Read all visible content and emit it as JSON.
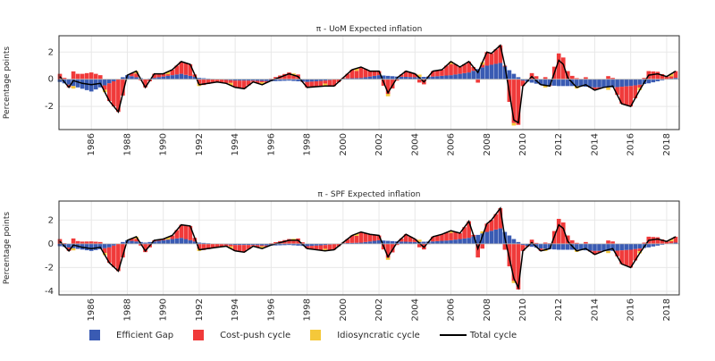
{
  "colors": {
    "efficient": "#3a5bb3",
    "costpush": "#f03a3a",
    "idio": "#f5c83a",
    "total": "#000000",
    "grid": "#e8e8e8",
    "axis": "#2a2a2a"
  },
  "legend": {
    "efficient_label": "Efficient Gap",
    "costpush_label": "Cost-push cycle",
    "idio_label": "Idiosyncratic cycle",
    "total_label": "Total cycle"
  },
  "chart_data": [
    {
      "type": "bar",
      "title": "π - UoM Expected inflation",
      "ylabel": "Percentage points",
      "xlim": [
        1984.2,
        2018.7
      ],
      "ylim": [
        -3.7,
        3.2
      ],
      "y_ticks": [
        -2,
        0,
        2
      ],
      "x_ticks": [
        1986,
        1988,
        1990,
        1992,
        1994,
        1996,
        1998,
        2000,
        2002,
        2004,
        2006,
        2008,
        2010,
        2012,
        2014,
        2016,
        2018
      ],
      "grid": true,
      "stacked": true,
      "efficient_gap_points": [
        [
          1984.25,
          -0.2
        ],
        [
          1986,
          -0.9
        ],
        [
          1987,
          -0.3
        ],
        [
          1988,
          0.3
        ],
        [
          1989,
          0.0
        ],
        [
          1990,
          0.2
        ],
        [
          1991,
          0.4
        ],
        [
          1992,
          0.1
        ],
        [
          1993,
          0.0
        ],
        [
          1994,
          -0.1
        ],
        [
          1995,
          -0.1
        ],
        [
          1996,
          -0.15
        ],
        [
          1997,
          -0.1
        ],
        [
          1998,
          -0.2
        ],
        [
          1999,
          -0.1
        ],
        [
          2000,
          0.05
        ],
        [
          2001,
          0.1
        ],
        [
          2002,
          0.3
        ],
        [
          2003,
          0.2
        ],
        [
          2004,
          0.15
        ],
        [
          2005,
          0.2
        ],
        [
          2006,
          0.3
        ],
        [
          2007,
          0.5
        ],
        [
          2008,
          1.0
        ],
        [
          2008.75,
          1.2
        ],
        [
          2009.5,
          0.4
        ],
        [
          2010,
          -0.1
        ],
        [
          2011,
          -0.4
        ],
        [
          2012,
          -0.5
        ],
        [
          2013,
          -0.5
        ],
        [
          2014,
          -0.6
        ],
        [
          2015,
          -0.6
        ],
        [
          2016,
          -0.5
        ],
        [
          2017,
          -0.3
        ],
        [
          2018,
          0.0
        ],
        [
          2018.5,
          0.1
        ]
      ],
      "total_cycle_points": [
        [
          1984.25,
          0.2
        ],
        [
          1984.75,
          -0.6
        ],
        [
          1985,
          -0.1
        ],
        [
          1985.5,
          -0.3
        ],
        [
          1986,
          -0.4
        ],
        [
          1986.5,
          -0.3
        ],
        [
          1987,
          -1.6
        ],
        [
          1987.5,
          -2.4
        ],
        [
          1988,
          0.3
        ],
        [
          1988.5,
          0.6
        ],
        [
          1989,
          -0.6
        ],
        [
          1989.5,
          0.4
        ],
        [
          1990,
          0.4
        ],
        [
          1990.5,
          0.7
        ],
        [
          1991,
          1.3
        ],
        [
          1991.5,
          1.1
        ],
        [
          1992,
          -0.4
        ],
        [
          1993,
          -0.2
        ],
        [
          1993.5,
          -0.3
        ],
        [
          1994,
          -0.6
        ],
        [
          1994.5,
          -0.7
        ],
        [
          1995,
          -0.2
        ],
        [
          1995.5,
          -0.4
        ],
        [
          1996,
          -0.1
        ],
        [
          1997,
          0.4
        ],
        [
          1997.5,
          0.2
        ],
        [
          1998,
          -0.6
        ],
        [
          1999,
          -0.5
        ],
        [
          1999.5,
          -0.5
        ],
        [
          2000,
          0.1
        ],
        [
          2000.5,
          0.7
        ],
        [
          2001,
          0.9
        ],
        [
          2001.5,
          0.6
        ],
        [
          2002,
          0.6
        ],
        [
          2002.5,
          -1.0
        ],
        [
          2003,
          0.1
        ],
        [
          2003.5,
          0.6
        ],
        [
          2004,
          0.4
        ],
        [
          2004.5,
          -0.2
        ],
        [
          2005,
          0.6
        ],
        [
          2005.5,
          0.7
        ],
        [
          2006,
          1.3
        ],
        [
          2006.5,
          0.9
        ],
        [
          2007,
          1.3
        ],
        [
          2007.5,
          0.5
        ],
        [
          2008,
          2.0
        ],
        [
          2008.25,
          1.9
        ],
        [
          2008.75,
          2.5
        ],
        [
          2009,
          1.0
        ],
        [
          2009.5,
          -3.0
        ],
        [
          2009.75,
          -3.2
        ],
        [
          2010,
          -0.5
        ],
        [
          2010.5,
          0.2
        ],
        [
          2011,
          -0.4
        ],
        [
          2011.5,
          -0.5
        ],
        [
          2012,
          1.4
        ],
        [
          2012.25,
          1.1
        ],
        [
          2012.5,
          0.1
        ],
        [
          2013,
          -0.6
        ],
        [
          2013.5,
          -0.4
        ],
        [
          2014,
          -0.8
        ],
        [
          2014.5,
          -0.6
        ],
        [
          2015,
          -0.5
        ],
        [
          2015.5,
          -1.8
        ],
        [
          2016,
          -2.0
        ],
        [
          2016.5,
          -0.8
        ],
        [
          2017,
          0.3
        ],
        [
          2017.5,
          0.4
        ],
        [
          2018,
          0.2
        ],
        [
          2018.5,
          0.6
        ]
      ]
    },
    {
      "type": "bar",
      "title": "π - SPF Expected inflation",
      "ylabel": "Percentage points",
      "xlim": [
        1984.2,
        2018.7
      ],
      "ylim": [
        -4.3,
        3.6
      ],
      "y_ticks": [
        -4,
        -2,
        0,
        2
      ],
      "x_ticks": [
        1986,
        1988,
        1990,
        1992,
        1994,
        1996,
        1998,
        2000,
        2002,
        2004,
        2006,
        2008,
        2010,
        2012,
        2014,
        2016,
        2018
      ],
      "grid": true,
      "stacked": true,
      "efficient_gap_points": [
        [
          1984.25,
          -0.2
        ],
        [
          1986,
          -0.6
        ],
        [
          1987,
          -0.3
        ],
        [
          1988,
          0.3
        ],
        [
          1989,
          0.1
        ],
        [
          1990,
          0.3
        ],
        [
          1991,
          0.5
        ],
        [
          1992,
          0.1
        ],
        [
          1993,
          0.0
        ],
        [
          1994,
          -0.1
        ],
        [
          1995,
          -0.1
        ],
        [
          1996,
          -0.15
        ],
        [
          1997,
          -0.1
        ],
        [
          1998,
          -0.2
        ],
        [
          1999,
          -0.1
        ],
        [
          2000,
          0.05
        ],
        [
          2001,
          0.1
        ],
        [
          2002,
          0.3
        ],
        [
          2003,
          0.2
        ],
        [
          2004,
          0.15
        ],
        [
          2005,
          0.2
        ],
        [
          2006,
          0.3
        ],
        [
          2007,
          0.5
        ],
        [
          2008,
          1.0
        ],
        [
          2008.75,
          1.3
        ],
        [
          2009.5,
          0.4
        ],
        [
          2010,
          -0.1
        ],
        [
          2011,
          -0.4
        ],
        [
          2012,
          -0.5
        ],
        [
          2013,
          -0.5
        ],
        [
          2014,
          -0.6
        ],
        [
          2015,
          -0.6
        ],
        [
          2016,
          -0.5
        ],
        [
          2017,
          -0.3
        ],
        [
          2018,
          0.0
        ],
        [
          2018.5,
          0.1
        ]
      ],
      "total_cycle_points": [
        [
          1984.25,
          0.2
        ],
        [
          1984.75,
          -0.6
        ],
        [
          1985,
          -0.1
        ],
        [
          1985.5,
          -0.3
        ],
        [
          1986,
          -0.4
        ],
        [
          1986.5,
          -0.3
        ],
        [
          1987,
          -1.6
        ],
        [
          1987.5,
          -2.3
        ],
        [
          1988,
          0.3
        ],
        [
          1988.5,
          0.6
        ],
        [
          1989,
          -0.6
        ],
        [
          1989.5,
          0.3
        ],
        [
          1990,
          0.4
        ],
        [
          1990.5,
          0.7
        ],
        [
          1991,
          1.6
        ],
        [
          1991.5,
          1.5
        ],
        [
          1992,
          -0.5
        ],
        [
          1993,
          -0.3
        ],
        [
          1993.5,
          -0.2
        ],
        [
          1994,
          -0.6
        ],
        [
          1994.5,
          -0.7
        ],
        [
          1995,
          -0.2
        ],
        [
          1995.5,
          -0.4
        ],
        [
          1996,
          -0.1
        ],
        [
          1997,
          0.3
        ],
        [
          1997.5,
          0.3
        ],
        [
          1998,
          -0.4
        ],
        [
          1999,
          -0.6
        ],
        [
          1999.5,
          -0.5
        ],
        [
          2000,
          0.1
        ],
        [
          2000.5,
          0.7
        ],
        [
          2001,
          1.0
        ],
        [
          2001.5,
          0.8
        ],
        [
          2002,
          0.7
        ],
        [
          2002.5,
          -1.1
        ],
        [
          2003,
          0.1
        ],
        [
          2003.5,
          0.8
        ],
        [
          2004,
          0.4
        ],
        [
          2004.5,
          -0.3
        ],
        [
          2005,
          0.6
        ],
        [
          2005.5,
          0.8
        ],
        [
          2006,
          1.1
        ],
        [
          2006.5,
          0.9
        ],
        [
          2007,
          1.9
        ],
        [
          2007.5,
          -0.4
        ],
        [
          2008,
          1.7
        ],
        [
          2008.25,
          2.0
        ],
        [
          2008.75,
          3.0
        ],
        [
          2009,
          0.5
        ],
        [
          2009.5,
          -2.9
        ],
        [
          2009.75,
          -3.7
        ],
        [
          2010,
          -0.6
        ],
        [
          2010.5,
          0.1
        ],
        [
          2011,
          -0.6
        ],
        [
          2011.5,
          -0.4
        ],
        [
          2012,
          1.6
        ],
        [
          2012.25,
          1.3
        ],
        [
          2012.5,
          0.2
        ],
        [
          2013,
          -0.6
        ],
        [
          2013.5,
          -0.4
        ],
        [
          2014,
          -0.9
        ],
        [
          2014.5,
          -0.6
        ],
        [
          2015,
          -0.4
        ],
        [
          2015.5,
          -1.7
        ],
        [
          2016,
          -2.0
        ],
        [
          2016.5,
          -0.8
        ],
        [
          2017,
          0.3
        ],
        [
          2017.5,
          0.4
        ],
        [
          2018,
          0.2
        ],
        [
          2018.5,
          0.6
        ]
      ]
    }
  ]
}
